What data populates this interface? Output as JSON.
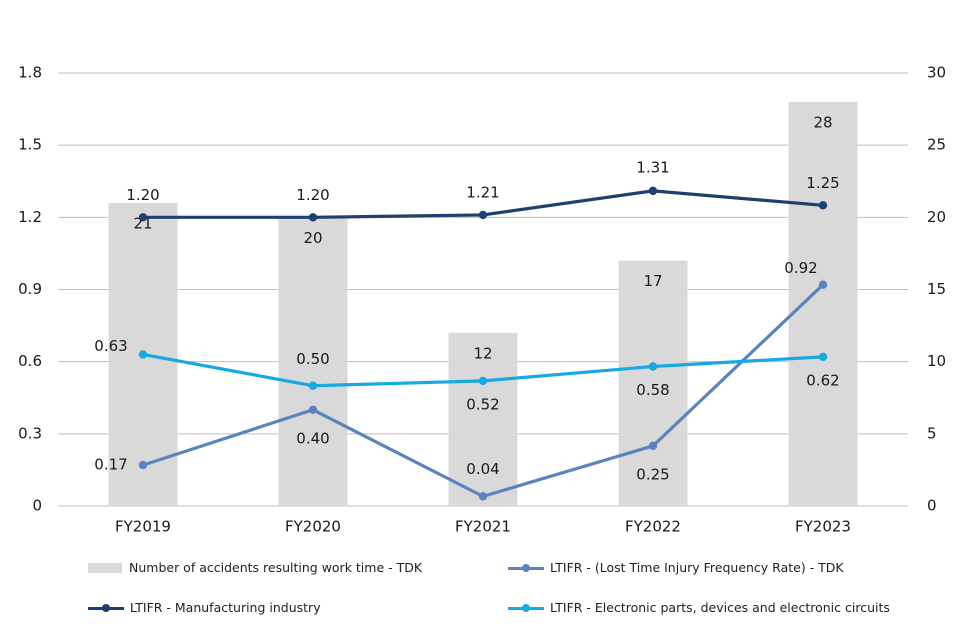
{
  "colors": {
    "bars": "#d9d9d9",
    "tdk_ltifr": "#5b84bd",
    "manufacturing": "#1f3f6e",
    "electronic": "#17a9e1",
    "grid": "#bfbfbf"
  },
  "chart_data": {
    "type": "bar",
    "categories": [
      "FY2019",
      "FY2020",
      "FY2021",
      "FY2022",
      "FY2023"
    ],
    "left_axis": {
      "ylim": [
        0,
        1.8
      ],
      "ticks": [
        "0",
        "0.3",
        "0.6",
        "0.9",
        "1.2",
        "1.5",
        "1.8"
      ]
    },
    "right_axis": {
      "ylim": [
        0,
        30
      ],
      "ticks": [
        "0",
        "5",
        "10",
        "15",
        "20",
        "25",
        "30"
      ]
    },
    "grid": true,
    "legend_position": "bottom",
    "bar_series": {
      "name": "Number of accidents resulting work time - TDK",
      "axis": "right",
      "values": [
        21,
        20,
        12,
        17,
        28
      ],
      "labels": [
        "21",
        "20",
        "12",
        "17",
        "28"
      ]
    },
    "line_series": [
      {
        "name": "LTIFR - (Lost Time Injury Frequency Rate) - TDK",
        "axis": "left",
        "color_key": "tdk_ltifr",
        "values": [
          0.17,
          0.4,
          0.04,
          0.25,
          0.92
        ],
        "labels": [
          "0.17",
          "0.40",
          "0.04",
          "0.25",
          "0.92"
        ]
      },
      {
        "name": "LTIFR - Manufacturing industry",
        "axis": "left",
        "color_key": "manufacturing",
        "values": [
          1.2,
          1.2,
          1.21,
          1.31,
          1.25
        ],
        "labels": [
          "1.20",
          "1.20",
          "1.21",
          "1.31",
          "1.25"
        ]
      },
      {
        "name": "LTIFR - Electronic parts, devices and electronic circuits",
        "axis": "left",
        "color_key": "electronic",
        "values": [
          0.63,
          0.5,
          0.52,
          0.58,
          0.62
        ],
        "labels": [
          "0.63",
          "0.50",
          "0.52",
          "0.58",
          "0.62"
        ]
      }
    ]
  }
}
